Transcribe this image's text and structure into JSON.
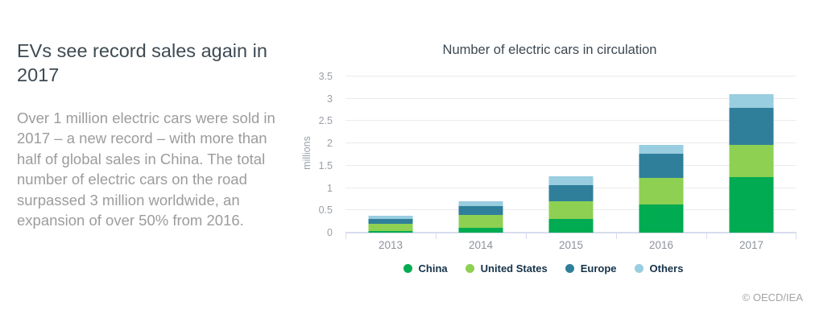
{
  "article": {
    "title": "EVs see record sales again in 2017",
    "body": "Over 1 million electric cars were sold in 2017 – a new record – with more than half of global sales in China. The total number of electric cars on the road surpassed 3 million worldwide, an expansion of over 50% from 2016."
  },
  "credit": "© OECD/IEA",
  "chart_data": {
    "type": "bar",
    "stacked": true,
    "title": "Number of electric cars in circulation",
    "ylabel": "millions",
    "xlabel": "",
    "categories": [
      "2013",
      "2014",
      "2015",
      "2016",
      "2017"
    ],
    "series": [
      {
        "name": "China",
        "color": "#00ab51",
        "values": [
          0.03,
          0.1,
          0.31,
          0.64,
          1.24
        ]
      },
      {
        "name": "United States",
        "color": "#8ed052",
        "values": [
          0.17,
          0.29,
          0.39,
          0.58,
          0.73
        ]
      },
      {
        "name": "Europe",
        "color": "#2f7f9b",
        "values": [
          0.11,
          0.21,
          0.37,
          0.54,
          0.83
        ]
      },
      {
        "name": "Others",
        "color": "#99cde0",
        "values": [
          0.07,
          0.1,
          0.19,
          0.21,
          0.31
        ]
      }
    ],
    "totals": [
      0.38,
      0.7,
      1.26,
      1.97,
      3.11
    ],
    "ylim": [
      0,
      3.5
    ],
    "ytick_step": 0.5,
    "grid": true,
    "legend_position": "bottom"
  }
}
